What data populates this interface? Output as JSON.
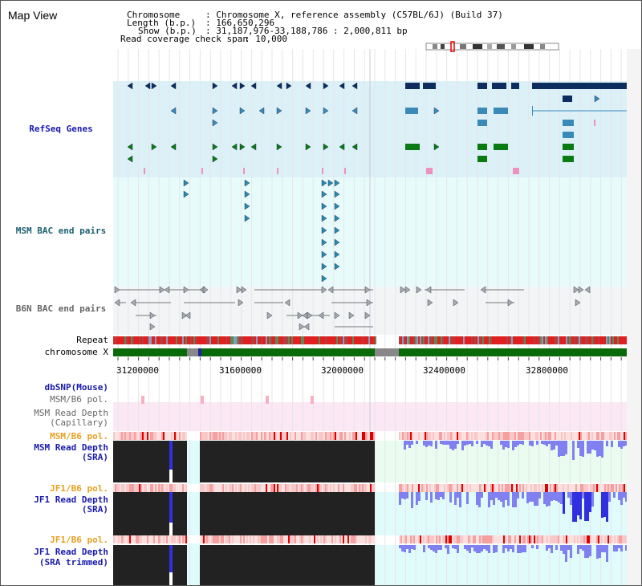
{
  "app": {
    "title": "Map View"
  },
  "header": {
    "chromosome_key": "Chromosome",
    "chromosome_val": ": Chromosome X, reference assembly (C57BL/6J) (Build 37)",
    "length_key": "Length (b.p.)",
    "length_val": ": 166,650,296",
    "show_key": "Show (b.p.)",
    "show_val": ": 31,187,976-33,188,786 : 2,000,811 bp",
    "span_key": "Read coverage check span",
    "span_val": ": 10,000"
  },
  "tracks": {
    "refseq": "RefSeq Genes",
    "msm_bac": "MSM BAC end pairs",
    "b6n_bac": "B6N BAC end pairs",
    "repeat": "Repeat",
    "chromosome": "chromosome X",
    "dbsnp": "dbSNP(Mouse)",
    "msm_b6_pol_1": "MSM/B6 pol.",
    "msm_depth_cap_1": "MSM Read Depth",
    "msm_depth_cap_2": "(Capillary)",
    "msm_b6_pol_2": "MSM/B6 pol.",
    "msm_depth_sra_1": "MSM Read Depth",
    "msm_depth_sra_2": "(SRA)",
    "jf1_pol_1": "JF1/B6 pol.",
    "jf1_depth_sra_1": "JF1 Read Depth",
    "jf1_depth_sra_2": "(SRA)",
    "jf1_pol_2": "JF1/B6 pol.",
    "jf1_depth_trim_1": "JF1 Read Depth",
    "jf1_depth_trim_2": "(SRA trimmed)"
  },
  "axis": {
    "ticks": [
      "31200000",
      "31600000",
      "32000000",
      "32400000",
      "32800000"
    ]
  },
  "colors": {
    "refseq_bg": "#dcf0f8",
    "bac_bg": "#e8fbfb",
    "b6n_bg": "#f2f4f6",
    "pol_bg": "#fbe8f4",
    "gene_dark": "#0d2d5e",
    "gene_mid": "#3a8ab8",
    "gene_green": "#0a7a12",
    "chromosome_green": "#0a6a0a",
    "depth_black": "#222222",
    "depth_blue": "#8080f0"
  }
}
